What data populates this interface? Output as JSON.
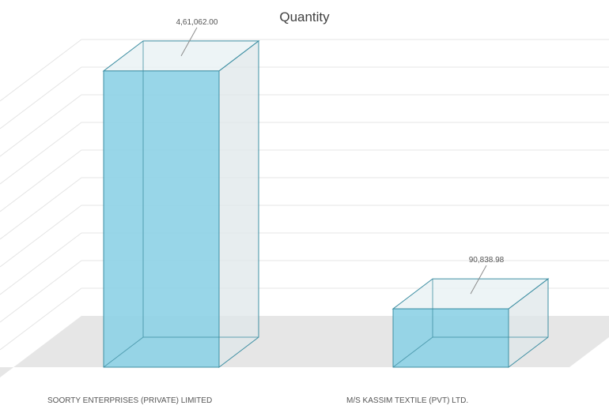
{
  "chart_data": {
    "type": "bar",
    "title": "Quantity",
    "categories": [
      "SOORTY ENTERPRISES (PRIVATE) LIMITED",
      "M/S KASSIM TEXTILE (PVT) LTD."
    ],
    "values": [
      461062.0,
      90838.98
    ],
    "data_labels": [
      "4,61,062.00",
      "90,838.98"
    ],
    "xlabel": "",
    "ylabel": "",
    "ylim": [
      0,
      510000
    ],
    "grid": true,
    "legend": "none",
    "style": "3d",
    "colors": {
      "bar_front": "#8fd3e6",
      "bar_edge": "#3e8fa3",
      "floor": "#e6e6e6",
      "grid": "#e4e4e4",
      "text": "#555555",
      "title": "#404040"
    }
  }
}
